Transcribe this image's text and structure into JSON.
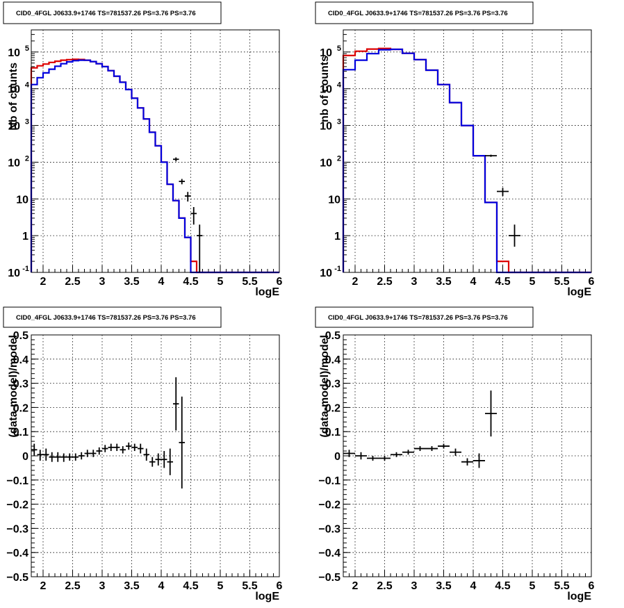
{
  "chart_data": [
    {
      "type": "histogram",
      "title": "CID0_4FGL J0633.9+1746 TS=781537.26 PS=3.76 PS=3.76",
      "xlabel": "logE",
      "ylabel": "Nb of counts",
      "xlim": [
        1.8,
        6
      ],
      "ylim": [
        0.1,
        400000
      ],
      "yscale": "log",
      "grid": true,
      "xticks": [
        "2",
        "2.5",
        "3",
        "3.5",
        "4",
        "4.5",
        "5",
        "5.5",
        "6"
      ],
      "yticks": [
        {
          "v": 0.1,
          "base": "10",
          "exp": "-1"
        },
        {
          "v": 1,
          "text": "1"
        },
        {
          "v": 10,
          "text": "10"
        },
        {
          "v": 100,
          "base": "10",
          "exp": "2"
        },
        {
          "v": 1000,
          "base": "10",
          "exp": "3"
        },
        {
          "v": 10000,
          "base": "10",
          "exp": "4"
        },
        {
          "v": 100000,
          "base": "10",
          "exp": "5"
        }
      ],
      "bin_edges": [
        1.8,
        1.9,
        2.0,
        2.1,
        2.2,
        2.3,
        2.4,
        2.5,
        2.6,
        2.7,
        2.8,
        2.9,
        3.0,
        3.1,
        3.2,
        3.3,
        3.4,
        3.5,
        3.6,
        3.7,
        3.8,
        3.9,
        4.0,
        4.1,
        4.2,
        4.3,
        4.4,
        4.5,
        4.6,
        4.7,
        4.8,
        4.9,
        5.0,
        5.1,
        5.2,
        5.3,
        5.4,
        5.5,
        5.6,
        5.7,
        5.8,
        5.9,
        6.0
      ],
      "series": [
        {
          "name": "model_red",
          "color": "#dd0000",
          "values": [
            37000,
            42000,
            47000,
            52000,
            56000,
            60000,
            62000,
            63000,
            62500,
            60000,
            55000,
            48000,
            40000,
            31000,
            22000,
            15000,
            9500,
            5500,
            3000,
            1500,
            650,
            280,
            100,
            25,
            9,
            3,
            0.9,
            0.2,
            0.1,
            0.1,
            0.1,
            0.1,
            0.1,
            0.1,
            0.1,
            0.1,
            0.1,
            0.1,
            0.1,
            0.1,
            0.1,
            0.1
          ]
        },
        {
          "name": "model_blue",
          "color": "#0000dd",
          "values": [
            13000,
            20000,
            27000,
            34000,
            41000,
            48000,
            54000,
            58000,
            60000,
            59500,
            55000,
            48000,
            40000,
            31000,
            22000,
            15000,
            9500,
            5500,
            3000,
            1500,
            650,
            280,
            100,
            25,
            9,
            3,
            0.9,
            0.1,
            0.1,
            0.1,
            0.1,
            0.1,
            0.1,
            0.1,
            0.1,
            0.1,
            0.1,
            0.1,
            0.1,
            0.1,
            0.1,
            0.1
          ]
        }
      ],
      "points": [
        {
          "x": 4.25,
          "y": 120,
          "dx": 0.05,
          "ylo": 105,
          "yhi": 135
        },
        {
          "x": 4.35,
          "y": 30,
          "dx": 0.05,
          "ylo": 25,
          "yhi": 35
        },
        {
          "x": 4.45,
          "y": 12,
          "dx": 0.05,
          "ylo": 8.5,
          "yhi": 15.5
        },
        {
          "x": 4.55,
          "y": 4,
          "dx": 0.05,
          "ylo": 2,
          "yhi": 6
        },
        {
          "x": 4.65,
          "y": 1,
          "dx": 0.05,
          "ylo": 0.1,
          "yhi": 2
        }
      ]
    },
    {
      "type": "histogram",
      "title": "CID0_4FGL J0633.9+1746 TS=781537.26 PS=3.76 PS=3.76",
      "xlabel": "logE",
      "ylabel": "nb of counts",
      "xlim": [
        1.8,
        6
      ],
      "ylim": [
        0.1,
        400000
      ],
      "yscale": "log",
      "grid": true,
      "xticks": [
        "2",
        "2.5",
        "3",
        "3.5",
        "4",
        "4.5",
        "5",
        "5.5",
        "6"
      ],
      "yticks": [
        {
          "v": 0.1,
          "base": "10",
          "exp": "-1"
        },
        {
          "v": 1,
          "text": "1"
        },
        {
          "v": 10,
          "text": "10"
        },
        {
          "v": 100,
          "base": "10",
          "exp": "2"
        },
        {
          "v": 1000,
          "base": "10",
          "exp": "3"
        },
        {
          "v": 10000,
          "base": "10",
          "exp": "4"
        },
        {
          "v": 100000,
          "base": "10",
          "exp": "5"
        }
      ],
      "bin_edges": [
        1.8,
        2.0,
        2.2,
        2.4,
        2.6,
        2.8,
        3.0,
        3.2,
        3.4,
        3.6,
        3.8,
        4.0,
        4.2,
        4.4,
        4.6,
        4.8,
        5.0,
        5.2,
        5.4,
        5.6,
        5.8,
        6.0
      ],
      "series": [
        {
          "name": "model_red",
          "color": "#dd0000",
          "values": [
            80000,
            105000,
            120000,
            125000,
            118000,
            92000,
            62000,
            32000,
            13000,
            4200,
            1000,
            150,
            8,
            0.2,
            0.1,
            0.1,
            0.1,
            0.1,
            0.1,
            0.1,
            0.1
          ]
        },
        {
          "name": "model_blue",
          "color": "#0000dd",
          "values": [
            33000,
            60000,
            90000,
            115000,
            118000,
            92000,
            62000,
            32000,
            13000,
            4200,
            1000,
            150,
            8,
            0.1,
            0.1,
            0.1,
            0.1,
            0.1,
            0.1,
            0.1,
            0.1
          ]
        }
      ],
      "points": [
        {
          "x": 4.3,
          "y": 150,
          "dx": 0.1,
          "ylo": 140,
          "yhi": 160
        },
        {
          "x": 4.5,
          "y": 16,
          "dx": 0.1,
          "ylo": 12,
          "yhi": 20
        },
        {
          "x": 4.7,
          "y": 1,
          "dx": 0.1,
          "ylo": 0.5,
          "yhi": 2
        }
      ]
    },
    {
      "type": "scatter",
      "title": "CID0_4FGL J0633.9+1746 TS=781537.26 PS=3.76 PS=3.76",
      "xlabel": "logE",
      "ylabel": "(data-model)/model",
      "xlim": [
        1.8,
        6
      ],
      "ylim": [
        -0.5,
        0.5
      ],
      "yscale": "linear",
      "grid": true,
      "xticks": [
        "2",
        "2.5",
        "3",
        "3.5",
        "4",
        "4.5",
        "5",
        "5.5",
        "6"
      ],
      "yticks": [
        "−0.5",
        "−0.4",
        "−0.3",
        "−0.2",
        "−0.1",
        "0",
        "0.1",
        "0.2",
        "0.3",
        "0.4",
        "0.5"
      ],
      "points": [
        {
          "x": 1.85,
          "y": 0.025,
          "dx": 0.05,
          "ylo": 0.0,
          "yhi": 0.05
        },
        {
          "x": 1.95,
          "y": 0.005,
          "dx": 0.05,
          "ylo": -0.02,
          "yhi": 0.025
        },
        {
          "x": 2.05,
          "y": 0.005,
          "dx": 0.05,
          "ylo": -0.02,
          "yhi": 0.03
        },
        {
          "x": 2.15,
          "y": -0.005,
          "dx": 0.05,
          "ylo": -0.025,
          "yhi": 0.015
        },
        {
          "x": 2.25,
          "y": -0.005,
          "dx": 0.05,
          "ylo": -0.025,
          "yhi": 0.015
        },
        {
          "x": 2.35,
          "y": -0.005,
          "dx": 0.05,
          "ylo": -0.025,
          "yhi": 0.01
        },
        {
          "x": 2.45,
          "y": -0.005,
          "dx": 0.05,
          "ylo": -0.02,
          "yhi": 0.01
        },
        {
          "x": 2.55,
          "y": -0.005,
          "dx": 0.05,
          "ylo": -0.02,
          "yhi": 0.01
        },
        {
          "x": 2.65,
          "y": 0.0,
          "dx": 0.05,
          "ylo": -0.015,
          "yhi": 0.015
        },
        {
          "x": 2.75,
          "y": 0.01,
          "dx": 0.05,
          "ylo": -0.005,
          "yhi": 0.025
        },
        {
          "x": 2.85,
          "y": 0.01,
          "dx": 0.05,
          "ylo": -0.005,
          "yhi": 0.025
        },
        {
          "x": 2.95,
          "y": 0.02,
          "dx": 0.05,
          "ylo": 0.005,
          "yhi": 0.035
        },
        {
          "x": 3.05,
          "y": 0.03,
          "dx": 0.05,
          "ylo": 0.015,
          "yhi": 0.045
        },
        {
          "x": 3.15,
          "y": 0.035,
          "dx": 0.05,
          "ylo": 0.02,
          "yhi": 0.05
        },
        {
          "x": 3.25,
          "y": 0.035,
          "dx": 0.05,
          "ylo": 0.02,
          "yhi": 0.05
        },
        {
          "x": 3.35,
          "y": 0.025,
          "dx": 0.05,
          "ylo": 0.01,
          "yhi": 0.04
        },
        {
          "x": 3.45,
          "y": 0.04,
          "dx": 0.05,
          "ylo": 0.025,
          "yhi": 0.055
        },
        {
          "x": 3.55,
          "y": 0.035,
          "dx": 0.05,
          "ylo": 0.02,
          "yhi": 0.05
        },
        {
          "x": 3.65,
          "y": 0.03,
          "dx": 0.05,
          "ylo": 0.01,
          "yhi": 0.05
        },
        {
          "x": 3.75,
          "y": 0.005,
          "dx": 0.05,
          "ylo": -0.02,
          "yhi": 0.03
        },
        {
          "x": 3.85,
          "y": -0.025,
          "dx": 0.05,
          "ylo": -0.045,
          "yhi": -0.005
        },
        {
          "x": 3.95,
          "y": -0.015,
          "dx": 0.05,
          "ylo": -0.04,
          "yhi": 0.01
        },
        {
          "x": 4.05,
          "y": -0.015,
          "dx": 0.05,
          "ylo": -0.05,
          "yhi": 0.02
        },
        {
          "x": 4.15,
          "y": -0.025,
          "dx": 0.05,
          "ylo": -0.08,
          "yhi": 0.03
        },
        {
          "x": 4.25,
          "y": 0.215,
          "dx": 0.05,
          "ylo": 0.105,
          "yhi": 0.325
        },
        {
          "x": 4.35,
          "y": 0.055,
          "dx": 0.05,
          "ylo": -0.135,
          "yhi": 0.245
        }
      ]
    },
    {
      "type": "scatter",
      "title": "CID0_4FGL J0633.9+1746 TS=781537.26 PS=3.76 PS=3.76",
      "xlabel": "logE",
      "ylabel": "(data-model)/model",
      "xlim": [
        1.8,
        6
      ],
      "ylim": [
        -0.5,
        0.5
      ],
      "yscale": "linear",
      "grid": true,
      "xticks": [
        "2",
        "2.5",
        "3",
        "3.5",
        "4",
        "4.5",
        "5",
        "5.5",
        "6"
      ],
      "yticks": [
        "−0.5",
        "−0.4",
        "−0.3",
        "−0.2",
        "−0.1",
        "0",
        "0.1",
        "0.2",
        "0.3",
        "0.4",
        "0.5"
      ],
      "points": [
        {
          "x": 1.9,
          "y": 0.01,
          "dx": 0.1,
          "ylo": -0.005,
          "yhi": 0.025
        },
        {
          "x": 2.1,
          "y": 0.0,
          "dx": 0.1,
          "ylo": -0.015,
          "yhi": 0.015
        },
        {
          "x": 2.3,
          "y": -0.01,
          "dx": 0.1,
          "ylo": -0.02,
          "yhi": 0.0
        },
        {
          "x": 2.5,
          "y": -0.01,
          "dx": 0.1,
          "ylo": -0.02,
          "yhi": 0.0
        },
        {
          "x": 2.7,
          "y": 0.005,
          "dx": 0.1,
          "ylo": -0.005,
          "yhi": 0.015
        },
        {
          "x": 2.9,
          "y": 0.015,
          "dx": 0.1,
          "ylo": 0.005,
          "yhi": 0.025
        },
        {
          "x": 3.1,
          "y": 0.03,
          "dx": 0.1,
          "ylo": 0.02,
          "yhi": 0.04
        },
        {
          "x": 3.3,
          "y": 0.03,
          "dx": 0.1,
          "ylo": 0.02,
          "yhi": 0.04
        },
        {
          "x": 3.5,
          "y": 0.04,
          "dx": 0.1,
          "ylo": 0.03,
          "yhi": 0.05
        },
        {
          "x": 3.7,
          "y": 0.015,
          "dx": 0.1,
          "ylo": 0.0,
          "yhi": 0.03
        },
        {
          "x": 3.9,
          "y": -0.025,
          "dx": 0.1,
          "ylo": -0.04,
          "yhi": -0.01
        },
        {
          "x": 4.1,
          "y": -0.02,
          "dx": 0.1,
          "ylo": -0.05,
          "yhi": 0.01
        },
        {
          "x": 4.3,
          "y": 0.175,
          "dx": 0.1,
          "ylo": 0.08,
          "yhi": 0.27
        }
      ]
    }
  ]
}
